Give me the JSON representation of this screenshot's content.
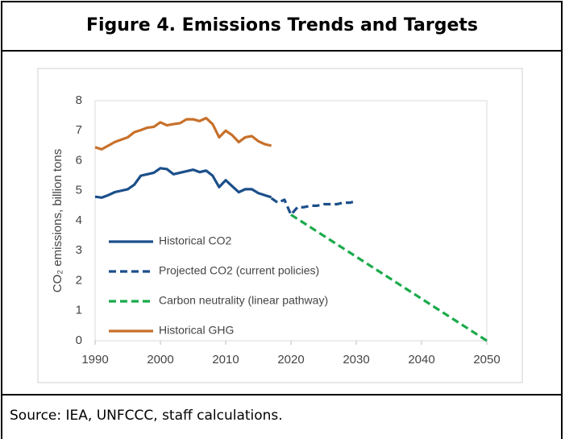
{
  "chart_data": {
    "type": "line",
    "title": "Figure 4. Emissions Trends and Targets",
    "ylabel": "CO₂ emissions, billion tons",
    "source": "Source: IEA, UNFCCC, staff calculations.",
    "xlim": [
      1990,
      2050
    ],
    "xticks": [
      1990,
      2000,
      2010,
      2020,
      2030,
      2040,
      2050
    ],
    "ylim": [
      0,
      8
    ],
    "yticks": [
      0,
      1,
      2,
      3,
      4,
      5,
      6,
      7,
      8
    ],
    "grid": false,
    "legend": "lower left",
    "series": [
      {
        "name": "Historical CO2",
        "color": "#1b4f8a",
        "dash": false,
        "x": [
          1990,
          1991,
          1992,
          1993,
          1994,
          1995,
          1996,
          1997,
          1998,
          1999,
          2000,
          2001,
          2002,
          2003,
          2004,
          2005,
          2006,
          2007,
          2008,
          2009,
          2010,
          2011,
          2012,
          2013,
          2014,
          2015,
          2016,
          2017
        ],
        "values": [
          4.8,
          4.77,
          4.85,
          4.95,
          5.0,
          5.05,
          5.2,
          5.5,
          5.55,
          5.6,
          5.75,
          5.72,
          5.55,
          5.6,
          5.65,
          5.7,
          5.62,
          5.67,
          5.5,
          5.12,
          5.35,
          5.15,
          4.95,
          5.05,
          5.05,
          4.92,
          4.85,
          4.78
        ]
      },
      {
        "name": "Projected CO2 (current policies)",
        "color": "#1b4f8a",
        "dash": true,
        "x": [
          2017,
          2018,
          2019,
          2020,
          2021,
          2022,
          2023,
          2024,
          2025,
          2026,
          2027,
          2028,
          2029,
          2030
        ],
        "values": [
          4.75,
          4.6,
          4.7,
          4.2,
          4.45,
          4.45,
          4.5,
          4.5,
          4.55,
          4.55,
          4.55,
          4.6,
          4.6,
          4.65
        ]
      },
      {
        "name": "Carbon neutrality (linear pathway)",
        "color": "#1aaa4a",
        "dash": true,
        "x": [
          2020,
          2050
        ],
        "values": [
          4.2,
          0
        ]
      },
      {
        "name": "Historical GHG",
        "color": "#c8702a",
        "dash": false,
        "x": [
          1990,
          1991,
          1992,
          1993,
          1994,
          1995,
          1996,
          1997,
          1998,
          1999,
          2000,
          2001,
          2002,
          2003,
          2004,
          2005,
          2006,
          2007,
          2008,
          2009,
          2010,
          2011,
          2012,
          2013,
          2014,
          2015,
          2016,
          2017
        ],
        "values": [
          6.45,
          6.38,
          6.5,
          6.62,
          6.7,
          6.78,
          6.95,
          7.02,
          7.1,
          7.13,
          7.28,
          7.18,
          7.22,
          7.25,
          7.38,
          7.38,
          7.32,
          7.42,
          7.22,
          6.78,
          7.0,
          6.85,
          6.62,
          6.78,
          6.82,
          6.65,
          6.55,
          6.5
        ]
      }
    ]
  }
}
